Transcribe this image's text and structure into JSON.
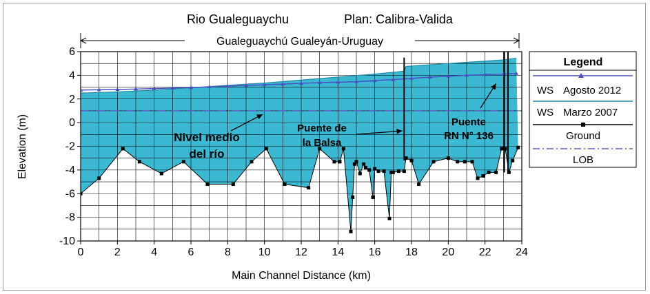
{
  "chart_data": {
    "type": "area",
    "title_river": "Rio Gualeguaychu",
    "title_plan": "Plan: Calibra-Valida",
    "reach_label": "Gualeguaychú Gualeyán-Uruguay",
    "xlabel": "Main Channel Distance (km)",
    "ylabel": "Elevation (m)",
    "xlim": [
      0,
      24
    ],
    "ylim": [
      -10,
      6
    ],
    "x_ticks": [
      0,
      2,
      4,
      6,
      8,
      10,
      12,
      14,
      16,
      18,
      20,
      22,
      24
    ],
    "y_ticks": [
      -10,
      -8,
      -6,
      -4,
      -2,
      0,
      2,
      4,
      6
    ],
    "grid": true,
    "legend": {
      "title": "Legend",
      "position": "right",
      "entries": [
        {
          "prefix": "WS",
          "label": "Agosto 2012"
        },
        {
          "prefix": "WS",
          "label": "Marzo 2007"
        },
        {
          "prefix": "",
          "label": "Ground"
        },
        {
          "prefix": "",
          "label": "LOB"
        }
      ]
    },
    "colors": {
      "water_fill": "#3cb9d2",
      "ws_agosto": "#4a4fc4",
      "ws_marzo": "#1f8aa8",
      "ground": "#000000",
      "lob": "#5e5ec8",
      "grid": "#000000"
    },
    "series": [
      {
        "name": "WS Agosto 2012",
        "x": [
          0,
          1,
          2,
          3,
          4,
          5,
          6,
          7,
          8,
          9,
          10,
          11,
          12,
          13,
          14,
          15,
          16,
          17,
          18,
          19,
          20,
          21,
          22,
          23,
          23.7
        ],
        "y": [
          2.75,
          2.78,
          2.8,
          2.84,
          2.88,
          2.92,
          2.97,
          3.02,
          3.08,
          3.14,
          3.2,
          3.26,
          3.32,
          3.38,
          3.42,
          3.46,
          3.55,
          3.64,
          3.74,
          3.84,
          3.92,
          4.0,
          4.06,
          4.1,
          4.15
        ]
      },
      {
        "name": "WS Marzo 2007",
        "x": [
          0,
          2,
          4,
          6,
          8,
          10,
          12,
          14,
          16,
          17.6,
          17.7,
          20,
          22,
          23,
          23.7
        ],
        "y": [
          2.5,
          2.6,
          2.75,
          2.95,
          3.15,
          3.35,
          3.6,
          3.85,
          4.1,
          4.35,
          4.75,
          5.0,
          5.2,
          5.3,
          5.45
        ]
      },
      {
        "name": "Ground",
        "x": [
          0,
          1,
          2.3,
          3.2,
          4.4,
          5.6,
          6.9,
          8.3,
          9.3,
          10.1,
          11.1,
          12.4,
          13.0,
          13.8,
          14.1,
          14.3,
          14.7,
          14.8,
          14.9,
          15.0,
          15.2,
          15.4,
          15.5,
          15.7,
          15.9,
          16.0,
          16.2,
          16.5,
          16.8,
          16.9,
          17.0,
          17.3,
          17.6,
          17.7,
          18.0,
          18.4,
          19.2,
          20.0,
          20.5,
          20.9,
          21.3,
          21.6,
          21.9,
          22.2,
          22.6,
          22.9,
          23.1,
          23.3,
          23.5,
          23.8
        ],
        "y": [
          -6.0,
          -4.7,
          -2.2,
          -3.3,
          -4.3,
          -3.3,
          -5.2,
          -5.2,
          -3.3,
          -2.2,
          -5.2,
          -5.5,
          -2.2,
          -3.3,
          -3.3,
          -2.2,
          -9.2,
          -6.3,
          -3.5,
          -3.3,
          -4.3,
          -3.5,
          -3.8,
          -4.0,
          -6.3,
          -3.9,
          -4.1,
          -4.1,
          -8.1,
          -4.2,
          -4.2,
          -4.1,
          -4.1,
          -3.0,
          -3.2,
          -5.2,
          -3.3,
          -3.0,
          -3.3,
          -3.3,
          -3.3,
          -4.7,
          -4.5,
          -4.2,
          -4.2,
          -2.2,
          -2.2,
          -4.2,
          -3.2,
          -2.1
        ]
      },
      {
        "name": "LOB",
        "x": [
          0,
          24
        ],
        "y": [
          1.0,
          1.0
        ]
      }
    ],
    "bridges": [
      {
        "x": 17.6,
        "top": 5.5,
        "bottom": -3.2
      },
      {
        "x": 23.05,
        "top": 6.0,
        "bottom": -4.2
      },
      {
        "x": 23.25,
        "top": 6.0,
        "bottom": -4.2
      }
    ],
    "annotations": [
      {
        "lines": [
          "Nivel medio",
          "del río"
        ],
        "arrow_to": [
          9.9,
          0.7
        ]
      },
      {
        "lines": [
          "Puente de",
          "la Balsa"
        ],
        "arrow_to": [
          17.5,
          -0.7
        ]
      },
      {
        "lines": [
          "Puente",
          "RN N° 136"
        ],
        "arrow_to": [
          22.6,
          3.3
        ]
      }
    ]
  }
}
